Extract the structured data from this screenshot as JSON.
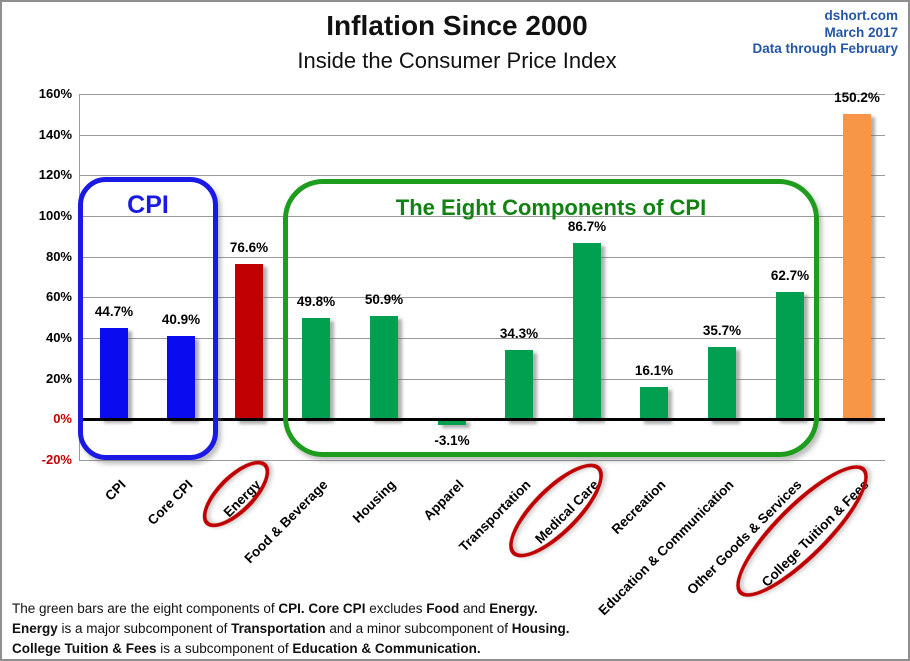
{
  "header": {
    "title": "Inflation Since 2000",
    "subtitle": "Inside the Consumer Price Index",
    "source": "dshort.com",
    "date": "March 2017",
    "data_through": "Data through February"
  },
  "chart_data": {
    "type": "bar",
    "title": "Inflation Since 2000",
    "subtitle": "Inside the Consumer Price Index",
    "xlabel": "",
    "ylabel": "",
    "ylim": [
      -20,
      160
    ],
    "ytick_interval": 20,
    "ytick_labels": [
      "160%",
      "140%",
      "120%",
      "100%",
      "80%",
      "60%",
      "40%",
      "20%",
      "0%",
      "-20%"
    ],
    "grid": true,
    "legend": "none",
    "categories": [
      "CPI",
      "Core CPI",
      "Energy",
      "Food & Beverage",
      "Housing",
      "Apparel",
      "Transportation",
      "Medical Care",
      "Recreation",
      "Education & Communication",
      "Other Goods & Services",
      "College Tuition & Fees"
    ],
    "values": [
      44.7,
      40.9,
      76.6,
      49.8,
      50.9,
      -3.1,
      34.3,
      86.7,
      16.1,
      35.7,
      62.7,
      150.2
    ],
    "value_labels": [
      "44.7%",
      "40.9%",
      "76.6%",
      "49.8%",
      "50.9%",
      "-3.1%",
      "34.3%",
      "86.7%",
      "16.1%",
      "35.7%",
      "62.7%",
      "150.2%"
    ],
    "bar_color_keys": [
      "bar_blue",
      "bar_blue",
      "bar_red",
      "bar_green",
      "bar_green",
      "bar_green",
      "bar_green",
      "bar_green",
      "bar_green",
      "bar_green",
      "bar_green",
      "bar_orange"
    ]
  },
  "annotations": {
    "cpi_box_label": "CPI",
    "components_box_label": "The Eight Components of CPI",
    "circled_categories": [
      "Energy",
      "Medical Care",
      "College Tuition & Fees"
    ]
  },
  "colors": {
    "bar_blue": "#0b0bf0",
    "bar_red": "#c00000",
    "bar_green": "#00a050",
    "bar_orange": "#f79646",
    "box_blue": "#1a1ae4",
    "box_green": "#1e9c1e",
    "circle_red": "#c00000",
    "negative_tick_red": "#c00000",
    "header_blue": "#2356a5"
  },
  "footer": {
    "lines": [
      {
        "segments": [
          {
            "text": "The green bars are the eight components of ",
            "bold": false
          },
          {
            "text": "CPI. Core CPI",
            "bold": true
          },
          {
            "text": " excludes ",
            "bold": false
          },
          {
            "text": "Food",
            "bold": true
          },
          {
            "text": " and ",
            "bold": false
          },
          {
            "text": "Energy.",
            "bold": true
          }
        ]
      },
      {
        "segments": [
          {
            "text": "Energy",
            "bold": true
          },
          {
            "text": " is a major subcomponent of ",
            "bold": false
          },
          {
            "text": "Transportation",
            "bold": true
          },
          {
            "text": " and a minor subcomponent of ",
            "bold": false
          },
          {
            "text": "Housing.",
            "bold": true
          }
        ]
      },
      {
        "segments": [
          {
            "text": "College Tuition & Fees",
            "bold": true
          },
          {
            "text": " is a subcomponent of ",
            "bold": false
          },
          {
            "text": "Education & Communication.",
            "bold": true
          }
        ]
      }
    ]
  }
}
